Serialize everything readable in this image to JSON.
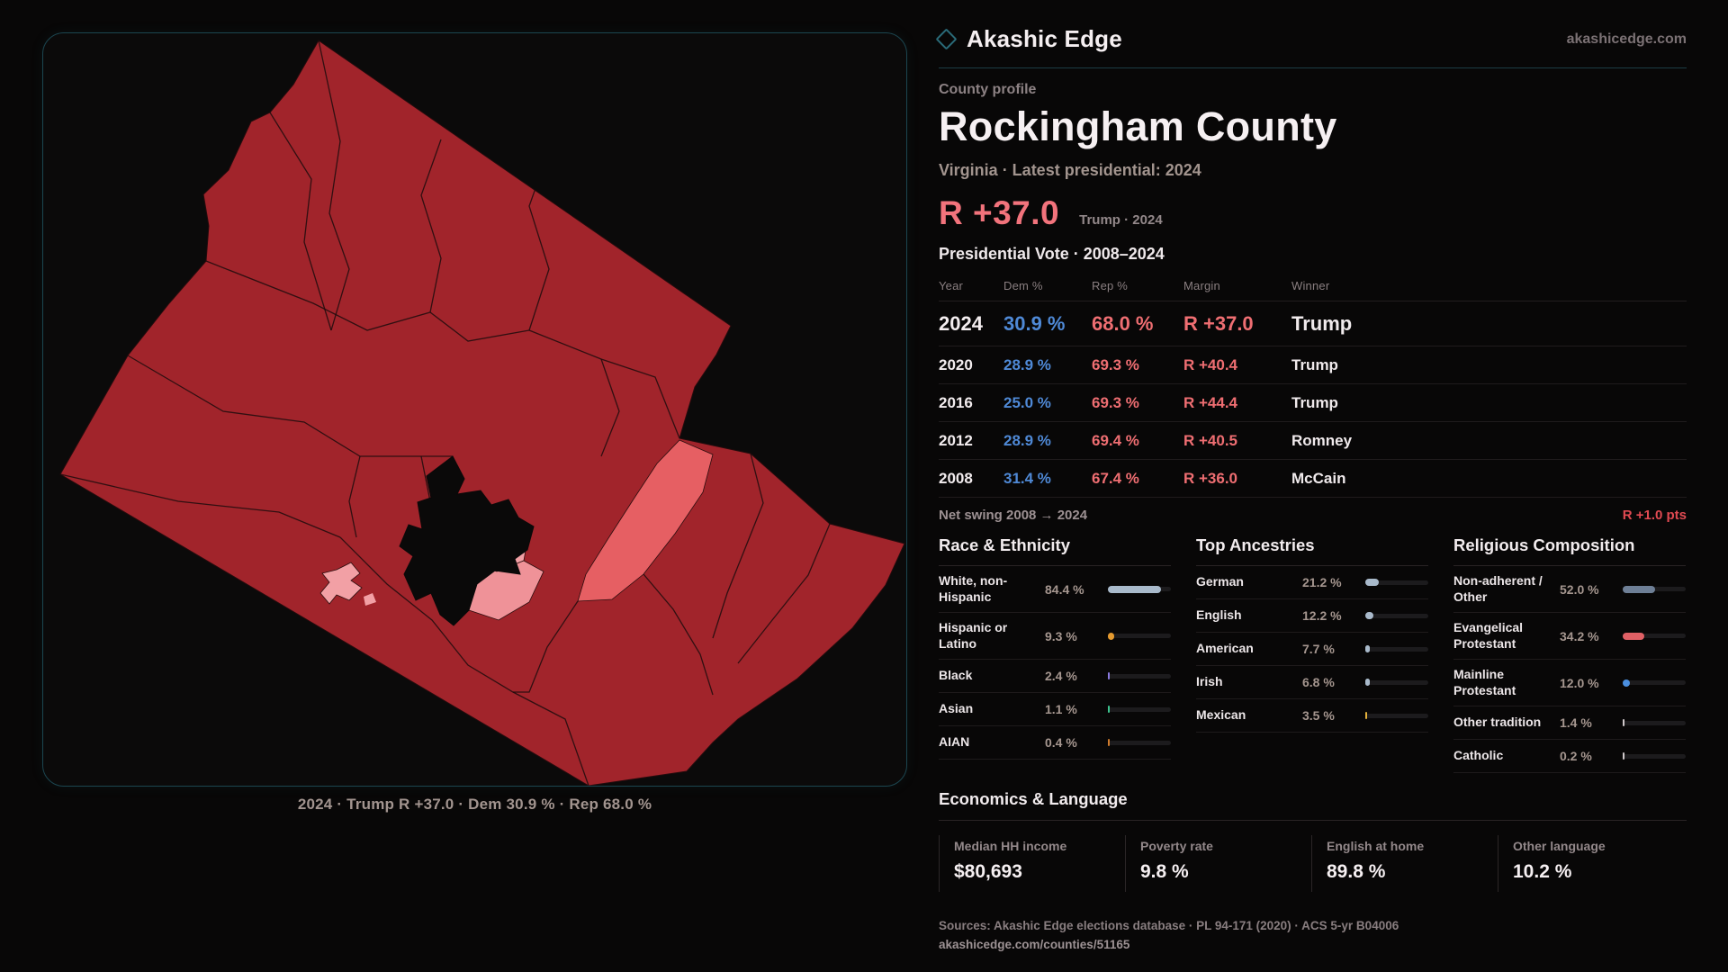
{
  "brand": {
    "name": "Akashic Edge",
    "domain": "akashicedge.com",
    "accent": "#2a6b79"
  },
  "profile": {
    "kicker": "County profile",
    "county": "Rockingham County",
    "subtitle": "Virginia · Latest presidential: 2024"
  },
  "headline": {
    "margin": "R +37.0",
    "context": "Trump · 2024",
    "color": "#f2737c"
  },
  "table": {
    "title": "Presidential Vote · 2008–2024",
    "columns": [
      "Year",
      "Dem %",
      "Rep %",
      "Margin",
      "Winner"
    ],
    "rows": [
      {
        "year": "2024",
        "dem": "30.9 %",
        "rep": "68.0 %",
        "margin": "R +37.0",
        "winner": "Trump",
        "big": true
      },
      {
        "year": "2020",
        "dem": "28.9 %",
        "rep": "69.3 %",
        "margin": "R +40.4",
        "winner": "Trump",
        "big": false
      },
      {
        "year": "2016",
        "dem": "25.0 %",
        "rep": "69.3 %",
        "margin": "R +44.4",
        "winner": "Trump",
        "big": false
      },
      {
        "year": "2012",
        "dem": "28.9 %",
        "rep": "69.4 %",
        "margin": "R +40.5",
        "winner": "Romney",
        "big": false
      },
      {
        "year": "2008",
        "dem": "31.4 %",
        "rep": "67.4 %",
        "margin": "R +36.0",
        "winner": "McCain",
        "big": false
      }
    ]
  },
  "net_swing": {
    "label": "Net swing 2008 → 2024",
    "value": "R +1.0 pts"
  },
  "demographics": {
    "columns": [
      {
        "title": "Race & Ethnicity",
        "items": [
          {
            "label": "White, non-Hispanic",
            "value": "84.4 %",
            "pct": 84.4,
            "color": "#a9bacb"
          },
          {
            "label": "Hispanic or Latino",
            "value": "9.3 %",
            "pct": 9.3,
            "color": "#e49a2f"
          },
          {
            "label": "Black",
            "value": "2.4 %",
            "pct": 2.4,
            "color": "#8a7ae0"
          },
          {
            "label": "Asian",
            "value": "1.1 %",
            "pct": 1.1,
            "color": "#3cc48e"
          },
          {
            "label": "AIAN",
            "value": "0.4 %",
            "pct": 0.4,
            "color": "#cf7b2c"
          }
        ]
      },
      {
        "title": "Top Ancestries",
        "items": [
          {
            "label": "German",
            "value": "21.2 %",
            "pct": 21.2,
            "color": "#a9bacb"
          },
          {
            "label": "English",
            "value": "12.2 %",
            "pct": 12.2,
            "color": "#a9bacb"
          },
          {
            "label": "American",
            "value": "7.7 %",
            "pct": 7.7,
            "color": "#a9bacb"
          },
          {
            "label": "Irish",
            "value": "6.8 %",
            "pct": 6.8,
            "color": "#a9bacb"
          },
          {
            "label": "Mexican",
            "value": "3.5 %",
            "pct": 3.5,
            "color": "#e4b13a"
          }
        ]
      },
      {
        "title": "Religious Composition",
        "items": [
          {
            "label": "Non-adherent / Other",
            "value": "52.0 %",
            "pct": 52.0,
            "color": "#6e7f96"
          },
          {
            "label": "Evangelical Protestant",
            "value": "34.2 %",
            "pct": 34.2,
            "color": "#e06065"
          },
          {
            "label": "Mainline Protestant",
            "value": "12.0 %",
            "pct": 12.0,
            "color": "#4a8fe0"
          },
          {
            "label": "Other tradition",
            "value": "1.4 %",
            "pct": 1.4,
            "color": "#cfc8ca"
          },
          {
            "label": "Catholic",
            "value": "0.2 %",
            "pct": 0.2,
            "color": "#cfc8ca"
          }
        ]
      }
    ]
  },
  "economics": {
    "title": "Economics & Language",
    "stats": [
      {
        "label": "Median HH income",
        "value": "$80,693"
      },
      {
        "label": "Poverty rate",
        "value": "9.8 %"
      },
      {
        "label": "English at home",
        "value": "89.8 %"
      },
      {
        "label": "Other language",
        "value": "10.2 %"
      }
    ]
  },
  "sources": {
    "line": "Sources: Akashic Edge elections database · PL 94-171 (2020) · ACS 5-yr B04006",
    "url": "akashicedge.com/counties/51165"
  },
  "map": {
    "caption": "2024 · Trump R +37.0 · Dem 30.9 % · Rep 68.0 %",
    "colors": {
      "county": "#a1242b",
      "light_lean": "#e65f63",
      "pink": "#f2a0a5",
      "pink_deep": "#ef9298",
      "independent_city": "#0a0909"
    }
  }
}
